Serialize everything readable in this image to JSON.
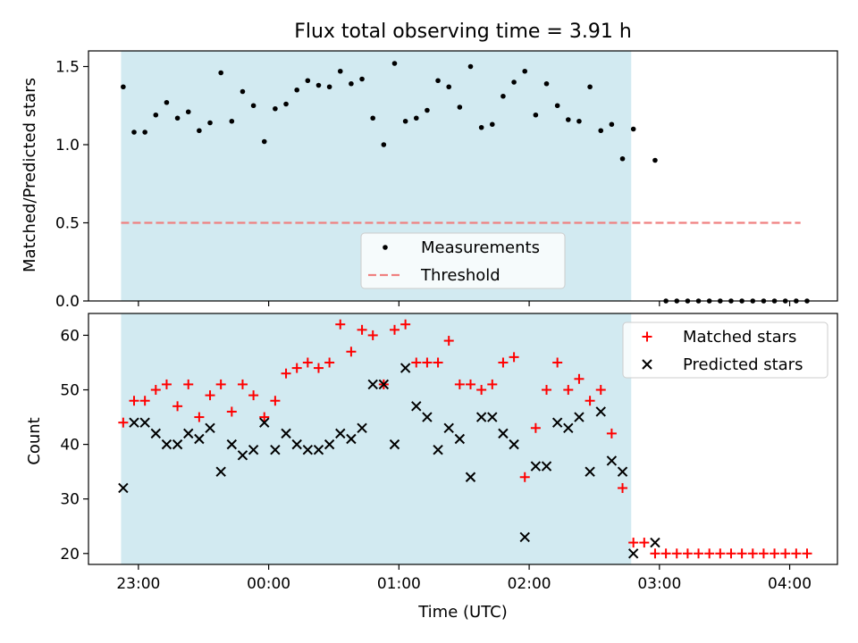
{
  "chart_data": {
    "type": "scatter",
    "title": "Flux total observing time = 3.91 h",
    "xlabel": "Time (UTC)",
    "x_ticks": [
      "23:00",
      "00:00",
      "01:00",
      "02:00",
      "03:00",
      "04:00"
    ],
    "x_tick_minutes": [
      -60,
      0,
      60,
      120,
      180,
      240
    ],
    "xlim_minutes": [
      -83,
      262
    ],
    "shaded_span_minutes": [
      -68,
      167
    ],
    "shade_color": "#add8e6",
    "panels": [
      {
        "id": "ratio",
        "ylabel": "Matched/Predicted stars",
        "ylim": [
          0,
          1.6
        ],
        "y_ticks": [
          "0.0",
          "0.5",
          "1.0",
          "1.5"
        ],
        "y_tick_values": [
          0,
          0.5,
          1.0,
          1.5
        ],
        "threshold": {
          "value": 0.5,
          "x_range_minutes": [
            -68,
            245
          ],
          "color": "#f08080"
        },
        "legend": {
          "placement": "lower-center",
          "entries": [
            "Measurements",
            "Threshold"
          ]
        },
        "series": [
          {
            "name": "Measurements",
            "marker": "dot",
            "color": "#000000",
            "x": [
              -67,
              -62,
              -57,
              -52,
              -47,
              -42,
              -37,
              -32,
              -27,
              -22,
              -17,
              -12,
              -7,
              -2,
              3,
              8,
              13,
              18,
              23,
              28,
              33,
              38,
              43,
              48,
              53,
              58,
              63,
              68,
              73,
              78,
              83,
              88,
              93,
              98,
              103,
              108,
              113,
              118,
              123,
              128,
              133,
              138,
              143,
              148,
              153,
              158,
              163,
              168,
              178,
              183,
              188,
              193,
              198,
              203,
              208,
              213,
              218,
              223,
              228,
              233,
              238,
              243,
              248
            ],
            "y": [
              1.37,
              1.08,
              1.08,
              1.19,
              1.27,
              1.17,
              1.21,
              1.09,
              1.14,
              1.46,
              1.15,
              1.34,
              1.25,
              1.02,
              1.23,
              1.26,
              1.35,
              1.41,
              1.38,
              1.37,
              1.47,
              1.39,
              1.42,
              1.17,
              1.0,
              1.52,
              1.15,
              1.17,
              1.22,
              1.41,
              1.37,
              1.24,
              1.5,
              1.11,
              1.13,
              1.31,
              1.4,
              1.47,
              1.19,
              1.39,
              1.25,
              1.16,
              1.15,
              1.37,
              1.09,
              1.13,
              0.91,
              1.1,
              0.9,
              0,
              0,
              0,
              0,
              0,
              0,
              0,
              0,
              0,
              0,
              0,
              0,
              0,
              0
            ]
          }
        ]
      },
      {
        "id": "counts",
        "ylabel": "Count",
        "ylim": [
          18,
          64
        ],
        "y_ticks": [
          "20",
          "30",
          "40",
          "50",
          "60"
        ],
        "y_tick_values": [
          20,
          30,
          40,
          50,
          60
        ],
        "legend": {
          "placement": "upper-right",
          "entries": [
            "Matched stars",
            "Predicted stars"
          ]
        },
        "series": [
          {
            "name": "Matched stars",
            "marker": "plus",
            "color": "#ff0000",
            "x": [
              -67,
              -62,
              -57,
              -52,
              -47,
              -42,
              -37,
              -32,
              -27,
              -22,
              -17,
              -12,
              -7,
              -2,
              3,
              8,
              13,
              18,
              23,
              28,
              33,
              38,
              43,
              48,
              53,
              58,
              63,
              68,
              73,
              78,
              83,
              88,
              93,
              98,
              103,
              108,
              113,
              118,
              123,
              128,
              133,
              138,
              143,
              148,
              153,
              158,
              163,
              168,
              173,
              178,
              183,
              188,
              193,
              198,
              203,
              208,
              213,
              218,
              223,
              228,
              233,
              238,
              243,
              248
            ],
            "y": [
              44,
              48,
              48,
              50,
              51,
              47,
              51,
              45,
              49,
              51,
              46,
              51,
              49,
              45,
              48,
              53,
              54,
              55,
              54,
              55,
              62,
              57,
              61,
              60,
              51,
              61,
              62,
              55,
              55,
              55,
              59,
              51,
              51,
              50,
              51,
              55,
              56,
              34,
              43,
              50,
              55,
              50,
              52,
              48,
              50,
              42,
              32,
              22,
              22,
              20,
              20,
              20,
              20,
              20,
              20,
              20,
              20,
              20,
              20,
              20,
              20,
              20,
              20,
              20
            ]
          },
          {
            "name": "Predicted stars",
            "marker": "x",
            "color": "#000000",
            "x": [
              -67,
              -62,
              -57,
              -52,
              -47,
              -42,
              -37,
              -32,
              -27,
              -22,
              -17,
              -12,
              -7,
              -2,
              3,
              8,
              13,
              18,
              23,
              28,
              33,
              38,
              43,
              48,
              53,
              58,
              63,
              68,
              73,
              78,
              83,
              88,
              93,
              98,
              103,
              108,
              113,
              118,
              123,
              128,
              133,
              138,
              143,
              148,
              153,
              158,
              163,
              168,
              178
            ],
            "y": [
              32,
              44,
              44,
              42,
              40,
              40,
              42,
              41,
              43,
              35,
              40,
              38,
              39,
              44,
              39,
              42,
              40,
              39,
              39,
              40,
              42,
              41,
              43,
              51,
              51,
              40,
              54,
              47,
              45,
              39,
              43,
              41,
              34,
              45,
              45,
              42,
              40,
              23,
              36,
              36,
              44,
              43,
              45,
              35,
              46,
              37,
              35,
              20,
              22
            ]
          }
        ]
      }
    ]
  }
}
